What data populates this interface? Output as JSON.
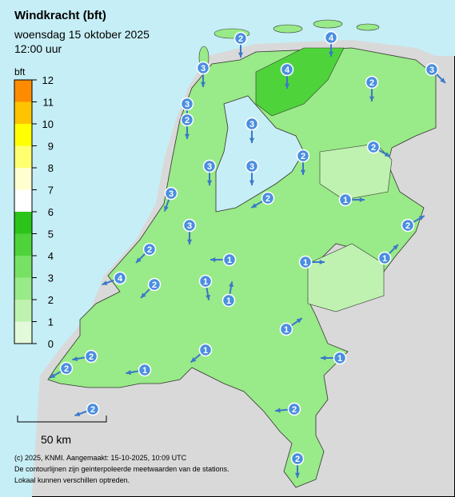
{
  "header": {
    "title": "Windkracht (bft)",
    "subtitle": "woensdag 15 oktober 2025",
    "time": "12:00 uur"
  },
  "legend": {
    "unit": "bft",
    "ticks": [
      0,
      1,
      2,
      3,
      4,
      5,
      6,
      7,
      8,
      9,
      10,
      11,
      12
    ],
    "colors": [
      "#e2f9da",
      "#bff2b0",
      "#99ea88",
      "#77e165",
      "#4ed43a",
      "#2cc41a",
      "#ffffff",
      "#ffffd0",
      "#ffff70",
      "#ffff00",
      "#ffc400",
      "#ff8c00"
    ]
  },
  "scale": "50 km",
  "footer": [
    "(c) 2025, KNMI. Aangemaakt: 15-10-2025, 10:09 UTC",
    "De contourlijnen zijn geinterpoleerde meetwaarden van de stations.",
    "Lokaal kunnen verschillen optreden."
  ],
  "stations": [
    2,
    4,
    3,
    3,
    4,
    2,
    3,
    2,
    3,
    2,
    2,
    3,
    3,
    3,
    2,
    1,
    2,
    3,
    2,
    1,
    1,
    1,
    4,
    2,
    1,
    1,
    1,
    1,
    2,
    1,
    2,
    1,
    2,
    2,
    2
  ]
}
